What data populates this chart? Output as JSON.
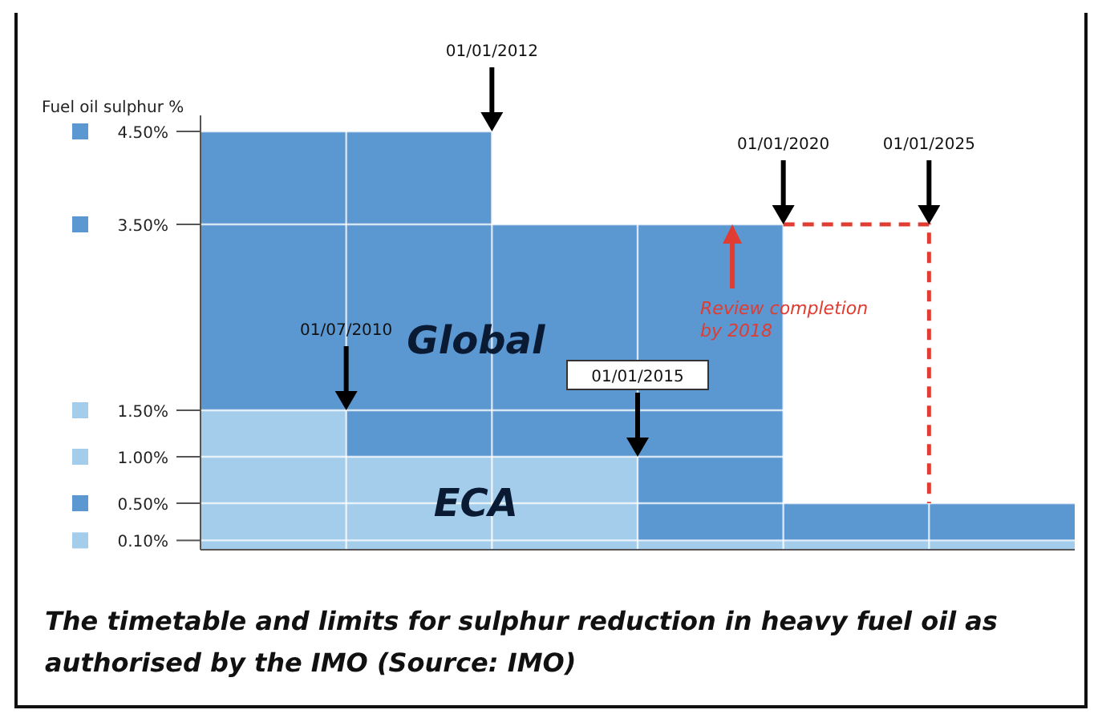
{
  "chart_data": {
    "type": "area",
    "ylabel": "Fuel oil sulphur %",
    "categories": [
      null,
      null,
      null,
      null,
      null,
      null,
      null
    ],
    "series": [
      {
        "name": "Global",
        "color": "#5b97d1",
        "values": [
          4.5,
          4.5,
          3.5,
          3.5,
          0.5,
          0.5,
          0.5
        ]
      },
      {
        "name": "ECA",
        "color": "#a3cdeb",
        "values": [
          1.5,
          1.0,
          1.0,
          0.1,
          0.1,
          0.1,
          0.1
        ]
      },
      {
        "type": "step",
        "color": "#e03c31",
        "line_style": "dashed",
        "values": [
          null,
          null,
          null,
          null,
          3.5,
          0.5,
          null
        ]
      }
    ],
    "ylim": [
      0,
      4.5
    ],
    "yticks": [
      {
        "value": 0.1,
        "label": "0.10%"
      },
      {
        "value": 0.5,
        "label": "0.50%"
      },
      {
        "value": 1.0,
        "label": "1.00%"
      },
      {
        "value": 1.5,
        "label": "1.50%"
      },
      {
        "value": 3.5,
        "label": "3.50%"
      },
      {
        "value": 4.5,
        "label": "4.50%"
      }
    ],
    "grid": true,
    "annotations": [
      "01/07/2010",
      "01/01/2012",
      "01/01/2015",
      "01/01/2020",
      "01/01/2025",
      "Review completion by 2018",
      "The timetable and limits for sulphur reduction in heavy fuel oil as authorised by the IMO (Source: IMO)"
    ]
  }
}
